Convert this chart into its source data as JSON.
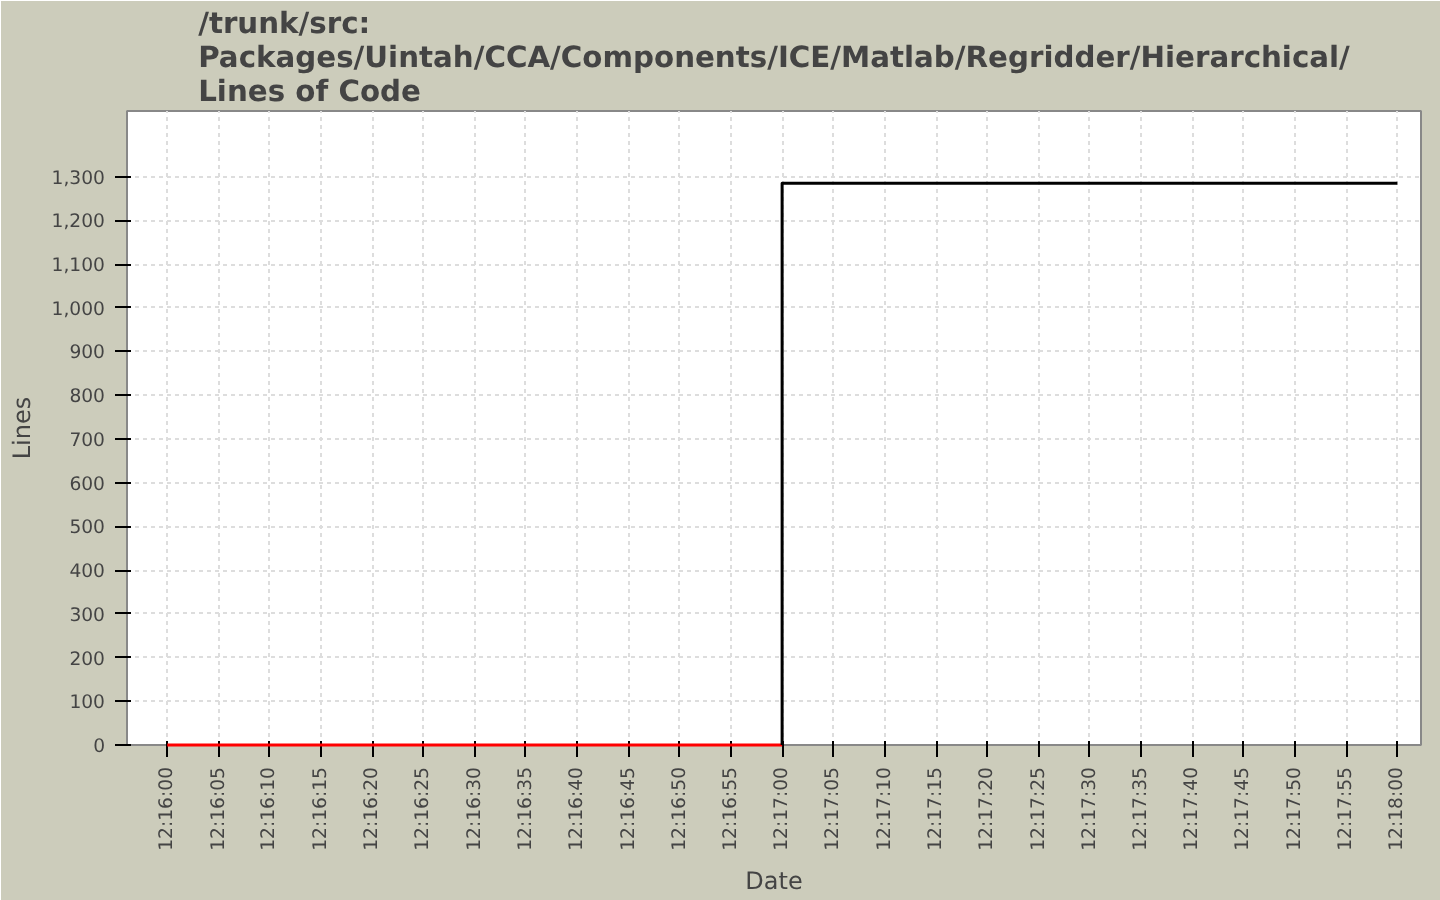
{
  "chart_data": {
    "type": "line",
    "title": "/trunk/src:\nPackages/Uintah/CCA/Components/ICE/Matlab/Regridder/Hierarchical/\nLines of Code",
    "xlabel": "Date",
    "ylabel": "Lines",
    "series": [
      {
        "color": "#ff0000",
        "x": [
          12.26667,
          12.28333
        ],
        "values": [
          0,
          0
        ]
      },
      {
        "color": "#000000",
        "x": [
          12.28333,
          12.28333,
          12.3
        ],
        "values": [
          0,
          1285,
          1285
        ]
      }
    ],
    "xlim": [
      12.26558,
      12.30064
    ],
    "xticks": [
      {
        "value": 12.26667,
        "label": "12:16:00"
      },
      {
        "value": 12.26806,
        "label": "12:16:05"
      },
      {
        "value": 12.26944,
        "label": "12:16:10"
      },
      {
        "value": 12.27083,
        "label": "12:16:15"
      },
      {
        "value": 12.27222,
        "label": "12:16:20"
      },
      {
        "value": 12.27361,
        "label": "12:16:25"
      },
      {
        "value": 12.275,
        "label": "12:16:30"
      },
      {
        "value": 12.27639,
        "label": "12:16:35"
      },
      {
        "value": 12.27778,
        "label": "12:16:40"
      },
      {
        "value": 12.27917,
        "label": "12:16:45"
      },
      {
        "value": 12.28056,
        "label": "12:16:50"
      },
      {
        "value": 12.28194,
        "label": "12:16:55"
      },
      {
        "value": 12.28333,
        "label": "12:17:00"
      },
      {
        "value": 12.28472,
        "label": "12:17:05"
      },
      {
        "value": 12.28611,
        "label": "12:17:10"
      },
      {
        "value": 12.2875,
        "label": "12:17:15"
      },
      {
        "value": 12.28889,
        "label": "12:17:20"
      },
      {
        "value": 12.29028,
        "label": "12:17:25"
      },
      {
        "value": 12.29167,
        "label": "12:17:30"
      },
      {
        "value": 12.29306,
        "label": "12:17:35"
      },
      {
        "value": 12.29444,
        "label": "12:17:40"
      },
      {
        "value": 12.29583,
        "label": "12:17:45"
      },
      {
        "value": 12.29722,
        "label": "12:17:50"
      },
      {
        "value": 12.29861,
        "label": "12:17:55"
      },
      {
        "value": 12.3,
        "label": "12:18:00"
      }
    ],
    "ylim": [
      0,
      1450
    ],
    "yticks": [
      {
        "value": 0,
        "label": "0"
      },
      {
        "value": 100,
        "label": "100"
      },
      {
        "value": 200,
        "label": "200"
      },
      {
        "value": 300,
        "label": "300"
      },
      {
        "value": 400,
        "label": "400"
      },
      {
        "value": 500,
        "label": "500"
      },
      {
        "value": 600,
        "label": "600"
      },
      {
        "value": 700,
        "label": "700"
      },
      {
        "value": 800,
        "label": "800"
      },
      {
        "value": 900,
        "label": "900"
      },
      {
        "value": 1000,
        "label": "1,000"
      },
      {
        "value": 1100,
        "label": "1,100"
      },
      {
        "value": 1200,
        "label": "1,200"
      },
      {
        "value": 1300,
        "label": "1,300"
      }
    ],
    "grid": true
  }
}
